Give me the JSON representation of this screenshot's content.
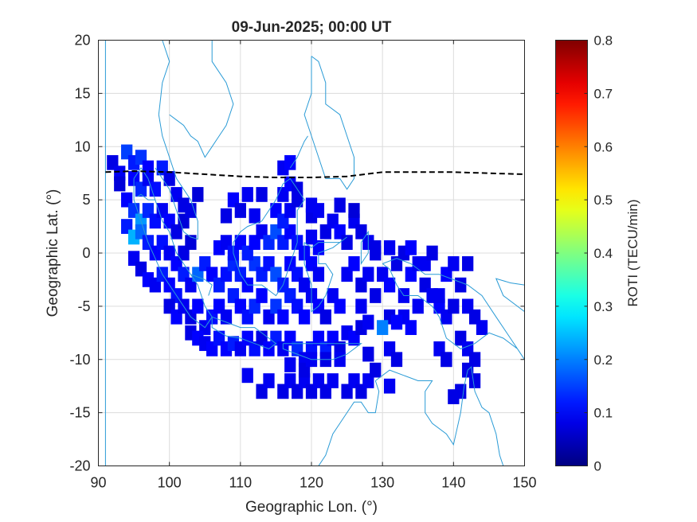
{
  "chart_data": {
    "type": "heatmap",
    "title": "09-Jun-2025; 00:00 UT",
    "xlabel": "Geographic Lon. (°)",
    "ylabel": "Geographic Lat. (°)",
    "xlim": [
      90,
      150
    ],
    "ylim": [
      -20,
      20
    ],
    "xticks": [
      90,
      100,
      110,
      120,
      130,
      140,
      150
    ],
    "yticks": [
      -20,
      -15,
      -10,
      -5,
      0,
      5,
      10,
      15,
      20
    ],
    "grid": true,
    "colorbar": {
      "label": "ROTI (TECU/min)",
      "min": 0,
      "max": 0.8,
      "ticks": [
        0,
        0.1,
        0.2,
        0.3,
        0.4,
        0.5,
        0.6,
        0.7,
        0.8
      ],
      "colormap": "jet"
    },
    "magnetic_equator": {
      "style": "dashed",
      "color": "#000000",
      "lon": [
        91,
        95,
        100,
        105,
        110,
        115,
        120,
        125,
        130,
        135,
        140,
        145,
        150
      ],
      "lat": [
        7.6,
        7.7,
        7.6,
        7.4,
        7.2,
        7.1,
        7.1,
        7.2,
        7.6,
        7.6,
        7.6,
        7.5,
        7.4
      ]
    },
    "cell_size_deg": 1,
    "cells": [
      [
        92,
        8.5,
        0.08
      ],
      [
        93,
        7.5,
        0.09
      ],
      [
        93,
        6.5,
        0.07
      ],
      [
        94,
        9.5,
        0.15
      ],
      [
        95,
        8.5,
        0.12
      ],
      [
        96,
        9,
        0.14
      ],
      [
        97,
        8,
        0.1
      ],
      [
        95,
        7,
        0.1
      ],
      [
        96,
        6,
        0.13
      ],
      [
        97,
        7,
        0.09
      ],
      [
        98,
        6,
        0.11
      ],
      [
        99,
        8,
        0.12
      ],
      [
        100,
        7,
        0.08
      ],
      [
        101,
        5.5,
        0.09
      ],
      [
        102,
        4.5,
        0.08
      ],
      [
        104,
        5.5,
        0.07
      ],
      [
        94,
        5,
        0.1
      ],
      [
        95,
        4,
        0.14
      ],
      [
        96,
        3,
        0.22
      ],
      [
        97,
        4,
        0.13
      ],
      [
        98,
        3,
        0.11
      ],
      [
        99,
        4,
        0.09
      ],
      [
        100,
        3,
        0.1
      ],
      [
        101,
        2,
        0.08
      ],
      [
        102,
        3,
        0.07
      ],
      [
        103,
        4,
        0.08
      ],
      [
        94,
        2.5,
        0.12
      ],
      [
        95,
        1.5,
        0.24
      ],
      [
        96,
        2,
        0.18
      ],
      [
        97,
        1,
        0.12
      ],
      [
        98,
        0,
        0.1
      ],
      [
        99,
        1,
        0.11
      ],
      [
        100,
        0,
        0.09
      ],
      [
        101,
        -1,
        0.1
      ],
      [
        102,
        0,
        0.08
      ],
      [
        103,
        1,
        0.07
      ],
      [
        95,
        -0.5,
        0.09
      ],
      [
        96,
        -1.5,
        0.08
      ],
      [
        97,
        -2.5,
        0.1
      ],
      [
        98,
        -3,
        0.09
      ],
      [
        99,
        -2,
        0.12
      ],
      [
        100,
        -3,
        0.1
      ],
      [
        101,
        -4,
        0.11
      ],
      [
        102,
        -2,
        0.12
      ],
      [
        103,
        -3,
        0.09
      ],
      [
        104,
        -2,
        0.18
      ],
      [
        105,
        -1,
        0.12
      ],
      [
        100,
        -5,
        0.08
      ],
      [
        101,
        -6,
        0.1
      ],
      [
        102,
        -5,
        0.09
      ],
      [
        103,
        -6,
        0.08
      ],
      [
        104,
        -5,
        0.1
      ],
      [
        105,
        -7,
        0.09
      ],
      [
        106,
        -6,
        0.11
      ],
      [
        103,
        -7.5,
        0.08
      ],
      [
        104,
        -8,
        0.1
      ],
      [
        105,
        -8.5,
        0.09
      ],
      [
        106,
        -9,
        0.1
      ],
      [
        107,
        -8,
        0.11
      ],
      [
        108,
        -9,
        0.1
      ],
      [
        109,
        -8.5,
        0.12
      ],
      [
        110,
        -9,
        0.09
      ],
      [
        111,
        -8,
        0.1
      ],
      [
        112,
        -9,
        0.11
      ],
      [
        113,
        -8,
        0.08
      ],
      [
        114,
        -9,
        0.1
      ],
      [
        115,
        -8,
        0.12
      ],
      [
        116,
        -9,
        0.09
      ],
      [
        117,
        -8,
        0.1
      ],
      [
        118,
        -9,
        0.13
      ],
      [
        119,
        -10,
        0.09
      ],
      [
        120,
        -9,
        0.11
      ],
      [
        121,
        -8,
        0.1
      ],
      [
        122,
        -9,
        0.12
      ],
      [
        123,
        -8,
        0.1
      ],
      [
        124,
        -9,
        0.08
      ],
      [
        125,
        -7.5,
        0.09
      ],
      [
        126,
        -8,
        0.1
      ],
      [
        127,
        -7,
        0.08
      ],
      [
        128,
        -6.5,
        0.09
      ],
      [
        107,
        -5,
        0.1
      ],
      [
        108,
        -6,
        0.09
      ],
      [
        109,
        -4,
        0.12
      ],
      [
        110,
        -5,
        0.1
      ],
      [
        111,
        -6,
        0.11
      ],
      [
        112,
        -5,
        0.13
      ],
      [
        113,
        -4,
        0.1
      ],
      [
        114,
        -6,
        0.09
      ],
      [
        115,
        -5,
        0.14
      ],
      [
        116,
        -6,
        0.1
      ],
      [
        117,
        -4,
        0.12
      ],
      [
        118,
        -5,
        0.11
      ],
      [
        119,
        -6,
        0.1
      ],
      [
        120,
        -4,
        0.09
      ],
      [
        121,
        -5,
        0.1
      ],
      [
        122,
        -6,
        0.08
      ],
      [
        123,
        -4,
        0.09
      ],
      [
        124,
        -5,
        0.1
      ],
      [
        106,
        -2,
        0.1
      ],
      [
        107,
        -3,
        0.12
      ],
      [
        108,
        -2,
        0.11
      ],
      [
        109,
        -1,
        0.13
      ],
      [
        110,
        -2,
        0.12
      ],
      [
        111,
        -3,
        0.1
      ],
      [
        112,
        -1,
        0.14
      ],
      [
        113,
        -2,
        0.12
      ],
      [
        114,
        -1,
        0.11
      ],
      [
        115,
        -2,
        0.16
      ],
      [
        116,
        -3,
        0.12
      ],
      [
        117,
        -1,
        0.1
      ],
      [
        118,
        -2,
        0.11
      ],
      [
        119,
        -3,
        0.09
      ],
      [
        120,
        -1,
        0.1
      ],
      [
        121,
        -2,
        0.09
      ],
      [
        107,
        0.5,
        0.1
      ],
      [
        108,
        1,
        0.09
      ],
      [
        109,
        0,
        0.11
      ],
      [
        110,
        1,
        0.1
      ],
      [
        111,
        0,
        0.12
      ],
      [
        112,
        1,
        0.1
      ],
      [
        113,
        2,
        0.09
      ],
      [
        114,
        1,
        0.13
      ],
      [
        115,
        2,
        0.16
      ],
      [
        116,
        1,
        0.12
      ],
      [
        117,
        2,
        0.1
      ],
      [
        118,
        1,
        0.11
      ],
      [
        119,
        0,
        0.1
      ],
      [
        120,
        1.5,
        0.09
      ],
      [
        121,
        0.5,
        0.1
      ],
      [
        122,
        2,
        0.08
      ],
      [
        123,
        3,
        0.09
      ],
      [
        124,
        2,
        0.1
      ],
      [
        125,
        1,
        0.08
      ],
      [
        126,
        3,
        0.09
      ],
      [
        127,
        2,
        0.08
      ],
      [
        128,
        1,
        0.09
      ],
      [
        129,
        0.5,
        0.08
      ],
      [
        108,
        3.5,
        0.08
      ],
      [
        112,
        3.5,
        0.09
      ],
      [
        115,
        4,
        0.1
      ],
      [
        116,
        3,
        0.12
      ],
      [
        117,
        4,
        0.09
      ],
      [
        120,
        3.5,
        0.08
      ],
      [
        121,
        4,
        0.09
      ],
      [
        109,
        5,
        0.1
      ],
      [
        110,
        4,
        0.08
      ],
      [
        111,
        5.5,
        0.09
      ],
      [
        113,
        5.5,
        0.08
      ],
      [
        116,
        5.5,
        0.09
      ],
      [
        117,
        6.5,
        0.1
      ],
      [
        118,
        5,
        0.08
      ],
      [
        116,
        8,
        0.09
      ],
      [
        117,
        8.5,
        0.1
      ],
      [
        118,
        6,
        0.08
      ],
      [
        120,
        4.5,
        0.09
      ],
      [
        124,
        4.5,
        0.08
      ],
      [
        126,
        4,
        0.07
      ],
      [
        125,
        -2,
        0.09
      ],
      [
        126,
        -1,
        0.1
      ],
      [
        127,
        -3,
        0.08
      ],
      [
        128,
        -2,
        0.09
      ],
      [
        129,
        -4,
        0.08
      ],
      [
        130,
        -2,
        0.09
      ],
      [
        131,
        -3,
        0.1
      ],
      [
        132,
        -1,
        0.08
      ],
      [
        133,
        -4,
        0.09
      ],
      [
        134,
        -2,
        0.1
      ],
      [
        135,
        -1,
        0.09
      ],
      [
        136,
        -3,
        0.08
      ],
      [
        137,
        -4,
        0.09
      ],
      [
        138,
        -5,
        0.1
      ],
      [
        131,
        -6,
        0.08
      ],
      [
        133,
        -6,
        0.09
      ],
      [
        134,
        -7,
        0.1
      ],
      [
        135,
        -5,
        0.09
      ],
      [
        130,
        -7,
        0.2
      ],
      [
        132,
        -6.5,
        0.1
      ],
      [
        127,
        -5,
        0.09
      ],
      [
        129,
        0,
        0.08
      ],
      [
        131,
        0.5,
        0.09
      ],
      [
        133,
        0,
        0.08
      ],
      [
        134,
        0.5,
        0.1
      ],
      [
        136,
        -1,
        0.09
      ],
      [
        137,
        0,
        0.08
      ],
      [
        139,
        -2,
        0.1
      ],
      [
        140,
        -1,
        0.09
      ],
      [
        142,
        -1,
        0.08
      ],
      [
        141,
        -3,
        0.08
      ],
      [
        138,
        -4,
        0.09
      ],
      [
        139,
        -6,
        0.09
      ],
      [
        140,
        -5,
        0.08
      ],
      [
        142,
        -5,
        0.09
      ],
      [
        143,
        -6,
        0.08
      ],
      [
        141,
        -8,
        0.08
      ],
      [
        142,
        -9,
        0.09
      ],
      [
        143,
        -10,
        0.08
      ],
      [
        139,
        -10,
        0.09
      ],
      [
        142,
        -11,
        0.08
      ],
      [
        143,
        -12,
        0.08
      ],
      [
        144,
        -7,
        0.09
      ],
      [
        141,
        -13,
        0.08
      ],
      [
        140,
        -13.5,
        0.08
      ],
      [
        111,
        -11.5,
        0.09
      ],
      [
        113,
        -13,
        0.08
      ],
      [
        114,
        -12,
        0.09
      ],
      [
        116,
        -13,
        0.08
      ],
      [
        117,
        -12,
        0.09
      ],
      [
        118,
        -13,
        0.08
      ],
      [
        119,
        -12,
        0.09
      ],
      [
        120,
        -13,
        0.08
      ],
      [
        121,
        -12,
        0.09
      ],
      [
        122,
        -13,
        0.08
      ],
      [
        123,
        -12,
        0.09
      ],
      [
        125,
        -13,
        0.08
      ],
      [
        126,
        -12,
        0.09
      ],
      [
        127,
        -13,
        0.08
      ],
      [
        128,
        -12,
        0.09
      ],
      [
        129,
        -11,
        0.08
      ],
      [
        131,
        -12.5,
        0.09
      ],
      [
        138,
        -9,
        0.09
      ],
      [
        139,
        -10,
        0.08
      ],
      [
        117,
        -10.5,
        0.09
      ],
      [
        119,
        -11,
        0.08
      ],
      [
        120,
        -10,
        0.09
      ],
      [
        122,
        -10,
        0.08
      ],
      [
        124,
        -10,
        0.09
      ],
      [
        128,
        -9.5,
        0.08
      ],
      [
        131,
        -9,
        0.09
      ],
      [
        132,
        -10,
        0.08
      ]
    ]
  }
}
